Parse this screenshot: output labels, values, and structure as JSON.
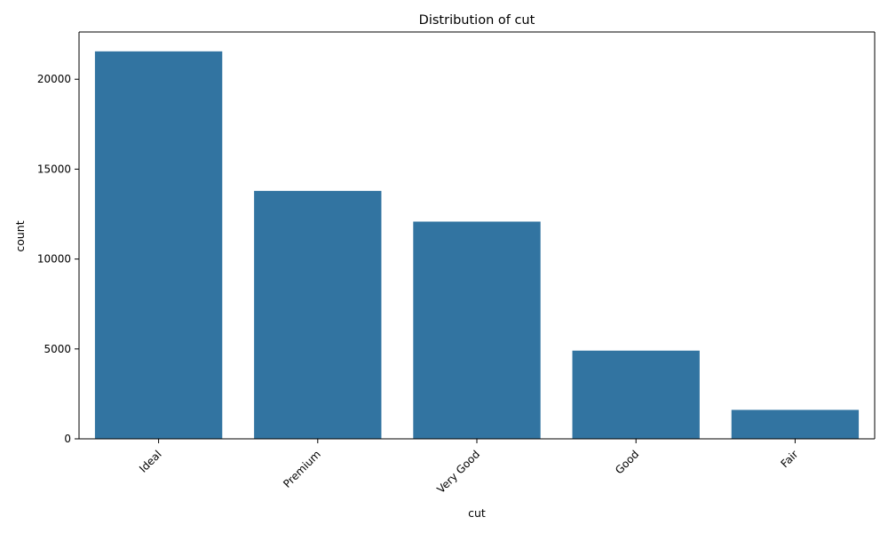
{
  "chart_data": {
    "type": "bar",
    "title": "Distribution of cut",
    "xlabel": "cut",
    "ylabel": "count",
    "categories": [
      "Ideal",
      "Premium",
      "Very Good",
      "Good",
      "Fair"
    ],
    "values": [
      21551,
      13791,
      12082,
      4906,
      1610
    ],
    "ylim": [
      0,
      22629
    ],
    "yticks": [
      0,
      5000,
      10000,
      15000,
      20000
    ],
    "ytick_labels": [
      "0",
      "5000",
      "10000",
      "15000",
      "20000"
    ],
    "x_tick_rotation_deg": 45,
    "grid": false,
    "legend": "none",
    "bar_color": "#3274a1"
  }
}
